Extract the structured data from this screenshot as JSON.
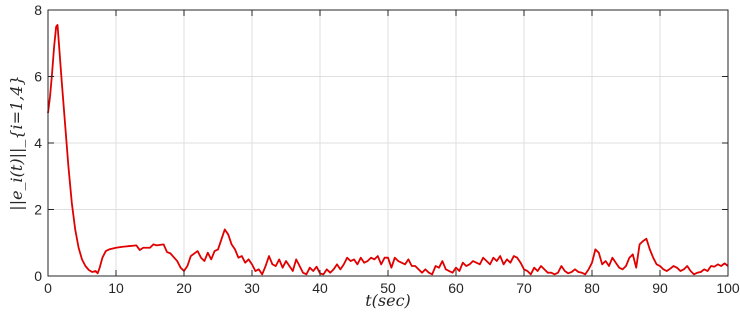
{
  "chart_data": {
    "type": "line",
    "xlabel": "t(sec)",
    "ylabel": "||e_i(t)||_{i=1,4}",
    "xlim": [
      0,
      100
    ],
    "ylim": [
      0,
      8
    ],
    "xticks": [
      0,
      10,
      20,
      30,
      40,
      50,
      60,
      70,
      80,
      90,
      100
    ],
    "yticks": [
      0,
      2,
      4,
      6,
      8
    ],
    "grid": true,
    "series": [
      {
        "color": "#e00000",
        "points": [
          [
            0.0,
            4.9
          ],
          [
            0.3,
            5.4
          ],
          [
            0.6,
            6.1
          ],
          [
            0.9,
            6.9
          ],
          [
            1.2,
            7.5
          ],
          [
            1.4,
            7.55
          ],
          [
            1.6,
            7.0
          ],
          [
            2.0,
            5.9
          ],
          [
            2.5,
            4.6
          ],
          [
            3.0,
            3.3
          ],
          [
            3.5,
            2.2
          ],
          [
            4.0,
            1.4
          ],
          [
            4.5,
            0.85
          ],
          [
            5.0,
            0.5
          ],
          [
            5.5,
            0.3
          ],
          [
            6.0,
            0.18
          ],
          [
            6.5,
            0.12
          ],
          [
            7.0,
            0.15
          ],
          [
            7.3,
            0.08
          ],
          [
            7.6,
            0.25
          ],
          [
            8.0,
            0.55
          ],
          [
            8.5,
            0.75
          ],
          [
            9.0,
            0.8
          ],
          [
            10.0,
            0.85
          ],
          [
            11.0,
            0.88
          ],
          [
            12.0,
            0.9
          ],
          [
            13.0,
            0.92
          ],
          [
            13.5,
            0.78
          ],
          [
            14.0,
            0.85
          ],
          [
            15.0,
            0.85
          ],
          [
            15.5,
            0.95
          ],
          [
            16.0,
            0.92
          ],
          [
            17.0,
            0.95
          ],
          [
            17.5,
            0.72
          ],
          [
            18.0,
            0.68
          ],
          [
            19.0,
            0.45
          ],
          [
            19.5,
            0.25
          ],
          [
            20.0,
            0.15
          ],
          [
            20.5,
            0.3
          ],
          [
            21.0,
            0.6
          ],
          [
            22.0,
            0.75
          ],
          [
            22.5,
            0.55
          ],
          [
            23.0,
            0.45
          ],
          [
            23.5,
            0.7
          ],
          [
            24.0,
            0.5
          ],
          [
            24.5,
            0.75
          ],
          [
            25.0,
            0.8
          ],
          [
            25.5,
            1.1
          ],
          [
            26.0,
            1.4
          ],
          [
            26.5,
            1.25
          ],
          [
            27.0,
            0.95
          ],
          [
            27.5,
            0.8
          ],
          [
            28.0,
            0.55
          ],
          [
            28.5,
            0.6
          ],
          [
            29.0,
            0.4
          ],
          [
            29.5,
            0.5
          ],
          [
            30.0,
            0.35
          ],
          [
            30.5,
            0.15
          ],
          [
            31.0,
            0.2
          ],
          [
            31.5,
            0.05
          ],
          [
            32.0,
            0.3
          ],
          [
            32.5,
            0.6
          ],
          [
            33.0,
            0.35
          ],
          [
            33.5,
            0.3
          ],
          [
            34.0,
            0.5
          ],
          [
            34.5,
            0.25
          ],
          [
            35.0,
            0.45
          ],
          [
            35.5,
            0.3
          ],
          [
            36.0,
            0.15
          ],
          [
            36.5,
            0.5
          ],
          [
            37.0,
            0.3
          ],
          [
            37.5,
            0.1
          ],
          [
            38.0,
            0.05
          ],
          [
            38.5,
            0.25
          ],
          [
            39.0,
            0.15
          ],
          [
            39.5,
            0.28
          ],
          [
            40.0,
            0.08
          ],
          [
            40.5,
            0.05
          ],
          [
            41.0,
            0.2
          ],
          [
            41.5,
            0.1
          ],
          [
            42.0,
            0.2
          ],
          [
            42.5,
            0.35
          ],
          [
            43.0,
            0.2
          ],
          [
            43.5,
            0.35
          ],
          [
            44.0,
            0.55
          ],
          [
            44.5,
            0.45
          ],
          [
            45.0,
            0.5
          ],
          [
            45.5,
            0.35
          ],
          [
            46.0,
            0.55
          ],
          [
            46.5,
            0.4
          ],
          [
            47.0,
            0.45
          ],
          [
            47.5,
            0.55
          ],
          [
            48.0,
            0.5
          ],
          [
            48.5,
            0.6
          ],
          [
            49.0,
            0.35
          ],
          [
            49.5,
            0.55
          ],
          [
            50.0,
            0.55
          ],
          [
            50.5,
            0.25
          ],
          [
            51.0,
            0.55
          ],
          [
            51.5,
            0.45
          ],
          [
            52.0,
            0.4
          ],
          [
            52.5,
            0.35
          ],
          [
            53.0,
            0.5
          ],
          [
            53.5,
            0.3
          ],
          [
            54.0,
            0.3
          ],
          [
            54.5,
            0.2
          ],
          [
            55.0,
            0.1
          ],
          [
            55.5,
            0.2
          ],
          [
            56.0,
            0.1
          ],
          [
            56.5,
            0.05
          ],
          [
            57.0,
            0.3
          ],
          [
            57.5,
            0.25
          ],
          [
            58.0,
            0.45
          ],
          [
            58.5,
            0.2
          ],
          [
            59.0,
            0.15
          ],
          [
            59.5,
            0.1
          ],
          [
            60.0,
            0.25
          ],
          [
            60.5,
            0.15
          ],
          [
            61.0,
            0.4
          ],
          [
            61.5,
            0.3
          ],
          [
            62.0,
            0.35
          ],
          [
            62.5,
            0.45
          ],
          [
            63.0,
            0.4
          ],
          [
            63.5,
            0.35
          ],
          [
            64.0,
            0.55
          ],
          [
            64.5,
            0.45
          ],
          [
            65.0,
            0.35
          ],
          [
            65.5,
            0.55
          ],
          [
            66.0,
            0.45
          ],
          [
            66.5,
            0.6
          ],
          [
            67.0,
            0.35
          ],
          [
            67.5,
            0.5
          ],
          [
            68.0,
            0.4
          ],
          [
            68.5,
            0.6
          ],
          [
            69.0,
            0.55
          ],
          [
            69.5,
            0.4
          ],
          [
            70.0,
            0.2
          ],
          [
            70.5,
            0.15
          ],
          [
            71.0,
            0.05
          ],
          [
            71.5,
            0.25
          ],
          [
            72.0,
            0.15
          ],
          [
            72.5,
            0.3
          ],
          [
            73.0,
            0.2
          ],
          [
            73.5,
            0.1
          ],
          [
            74.0,
            0.1
          ],
          [
            74.5,
            0.05
          ],
          [
            75.0,
            0.1
          ],
          [
            75.5,
            0.3
          ],
          [
            76.0,
            0.15
          ],
          [
            76.5,
            0.08
          ],
          [
            77.0,
            0.12
          ],
          [
            77.5,
            0.2
          ],
          [
            78.0,
            0.12
          ],
          [
            78.5,
            0.1
          ],
          [
            79.0,
            0.05
          ],
          [
            79.5,
            0.2
          ],
          [
            80.0,
            0.4
          ],
          [
            80.5,
            0.8
          ],
          [
            81.0,
            0.7
          ],
          [
            81.5,
            0.35
          ],
          [
            82.0,
            0.45
          ],
          [
            82.5,
            0.3
          ],
          [
            83.0,
            0.55
          ],
          [
            83.5,
            0.4
          ],
          [
            84.0,
            0.25
          ],
          [
            84.5,
            0.2
          ],
          [
            85.0,
            0.3
          ],
          [
            85.5,
            0.55
          ],
          [
            86.0,
            0.65
          ],
          [
            86.5,
            0.25
          ],
          [
            87.0,
            0.95
          ],
          [
            87.5,
            1.05
          ],
          [
            88.0,
            1.12
          ],
          [
            88.5,
            0.8
          ],
          [
            89.0,
            0.55
          ],
          [
            89.5,
            0.35
          ],
          [
            90.0,
            0.3
          ],
          [
            90.5,
            0.2
          ],
          [
            91.0,
            0.15
          ],
          [
            91.5,
            0.22
          ],
          [
            92.0,
            0.3
          ],
          [
            92.5,
            0.25
          ],
          [
            93.0,
            0.15
          ],
          [
            93.5,
            0.2
          ],
          [
            94.0,
            0.3
          ],
          [
            94.5,
            0.15
          ],
          [
            95.0,
            0.05
          ],
          [
            95.5,
            0.1
          ],
          [
            96.0,
            0.12
          ],
          [
            96.5,
            0.2
          ],
          [
            97.0,
            0.15
          ],
          [
            97.5,
            0.3
          ],
          [
            98.0,
            0.28
          ],
          [
            98.5,
            0.35
          ],
          [
            99.0,
            0.3
          ],
          [
            99.5,
            0.38
          ],
          [
            100.0,
            0.3
          ]
        ]
      }
    ]
  }
}
